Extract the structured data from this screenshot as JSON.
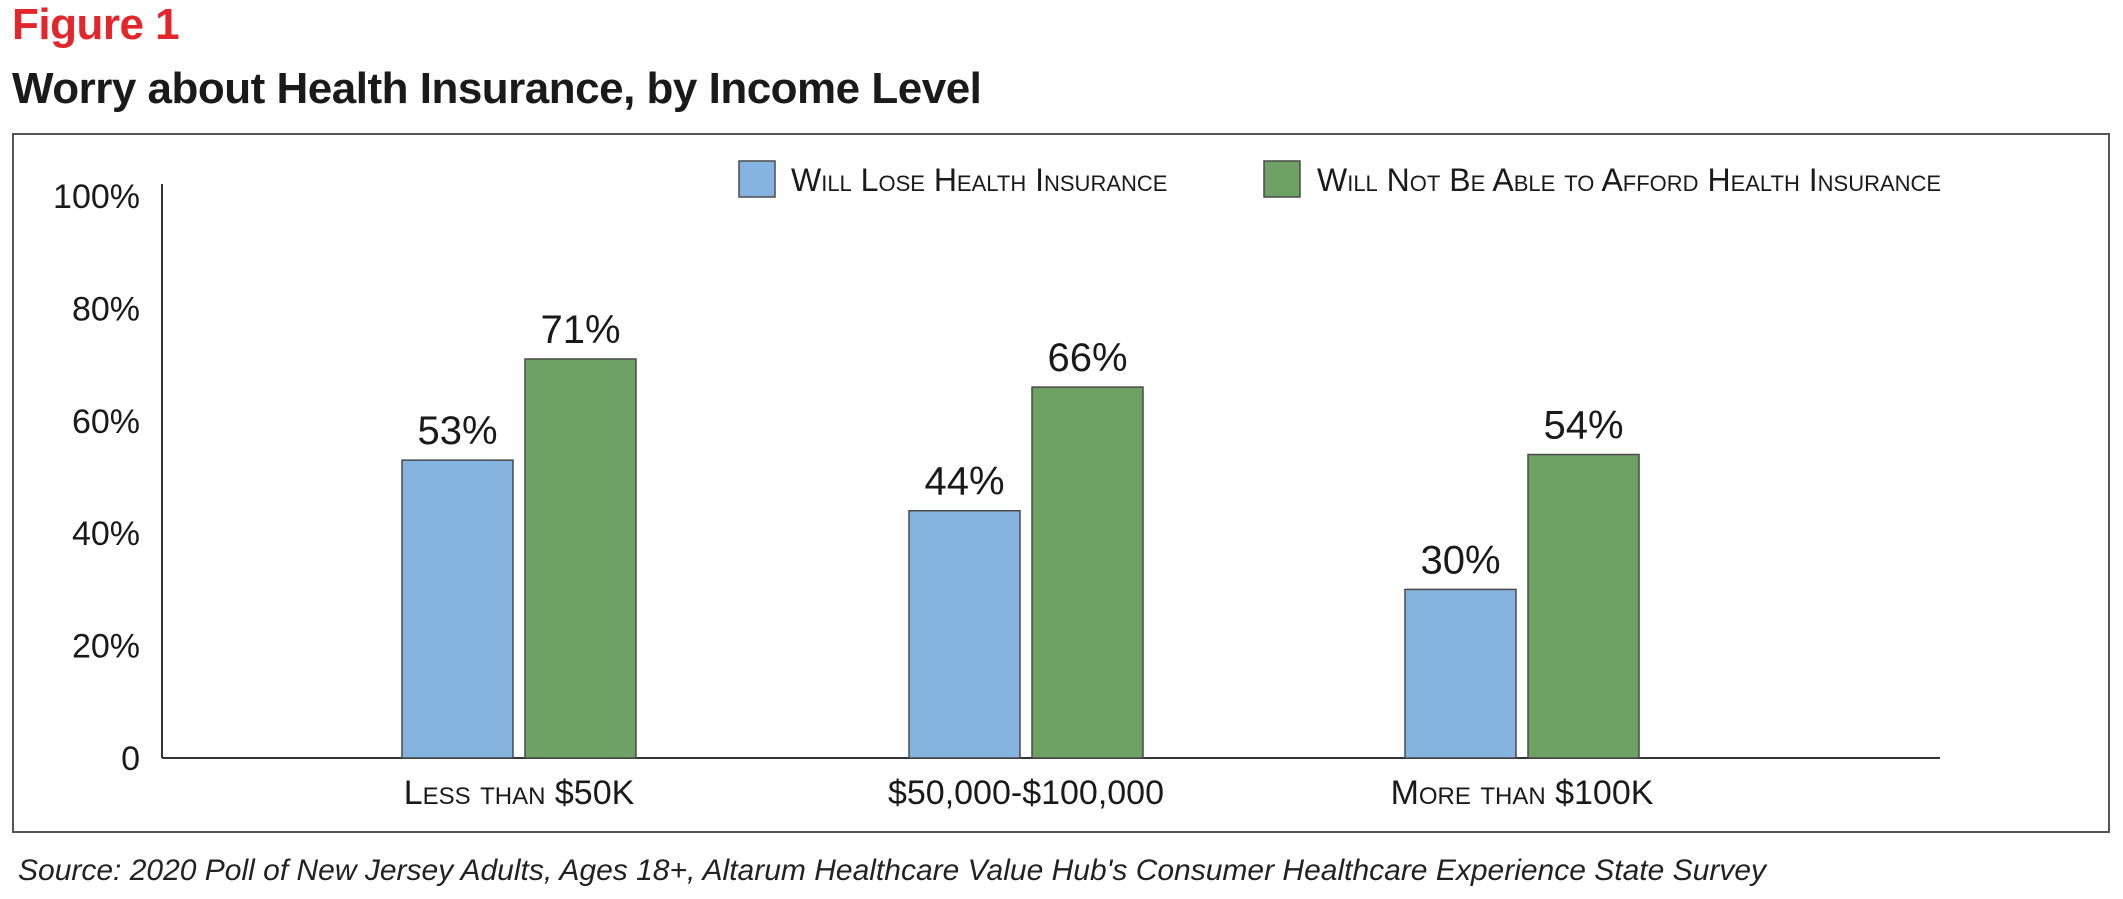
{
  "figure_label": "Figure 1",
  "title": "Worry about Health Insurance, by Income Level",
  "source": "Source: 2020 Poll of New Jersey Adults, Ages 18+, Altarum Healthcare Value Hub's Consumer Healthcare Experience State Survey",
  "colors": {
    "series_1": "#85b3e0",
    "series_2": "#6ea164",
    "title": "#1a1a1a",
    "figure_label": "#e3262b"
  },
  "chart_data": {
    "type": "bar",
    "categories": [
      "Less than $50K",
      "$50,000-$100,000",
      "More than $100K"
    ],
    "series": [
      {
        "name": "Will Lose Health Insurance",
        "values": [
          53,
          44,
          30
        ],
        "labels": [
          "53%",
          "44%",
          "30%"
        ]
      },
      {
        "name": "Will Not Be Able to Afford Health Insurance",
        "values": [
          71,
          66,
          54
        ],
        "labels": [
          "71%",
          "66%",
          "54%"
        ]
      }
    ],
    "ylim": [
      0,
      100
    ],
    "yticks": [
      0,
      20,
      40,
      60,
      80,
      100
    ],
    "ytick_labels": [
      "0",
      "20%",
      "40%",
      "60%",
      "80%",
      "100%"
    ],
    "xlabel": "",
    "ylabel": "",
    "grid": false,
    "legend_position": "top-right"
  }
}
